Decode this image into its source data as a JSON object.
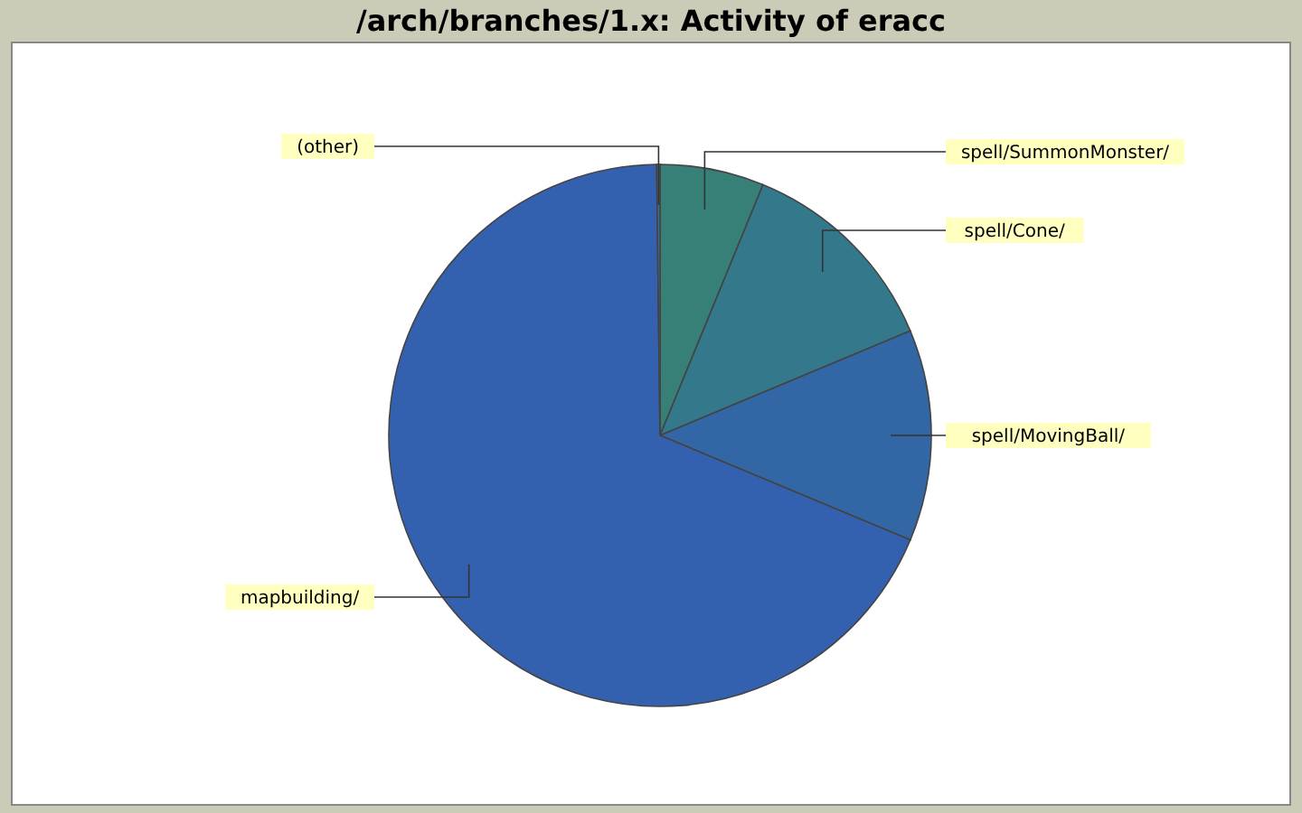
{
  "chart_data": {
    "type": "pie",
    "title": "/arch/branches/1.x: Activity of eracc",
    "categories": [
      "spell/SummonMonster/",
      "spell/Cone/",
      "spell/MovingBall/",
      "mapbuilding/",
      "(other)"
    ],
    "values": [
      6.2,
      12.5,
      12.6,
      68.5,
      0.2
    ],
    "colors": [
      "#368078",
      "#34788c",
      "#3366a4",
      "#3361b0",
      "#3a6e9a"
    ],
    "legend": false
  }
}
